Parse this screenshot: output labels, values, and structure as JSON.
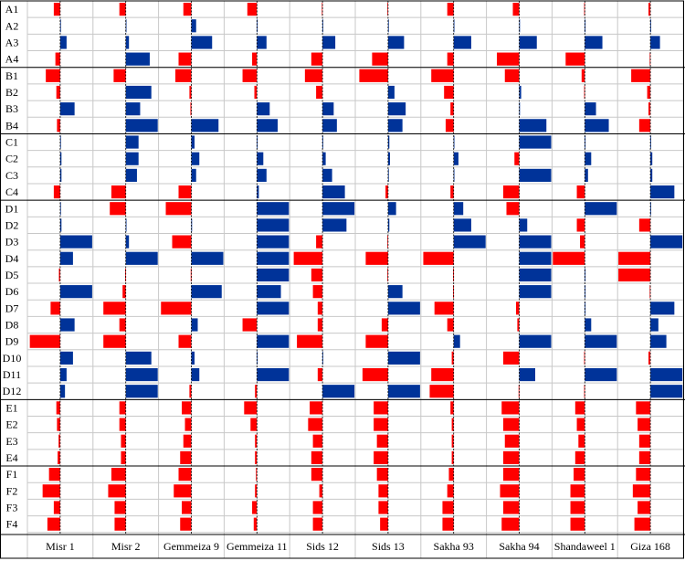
{
  "chart_data": {
    "type": "bar",
    "orientation": "horizontal",
    "layout": "small-multiples",
    "colors": {
      "positive": "#003399",
      "negative": "#ff0000",
      "frame": "#000000",
      "grid": "#c8c8c8"
    },
    "xlim": [
      -1,
      1
    ],
    "grid": true,
    "legend": "none",
    "groups": [
      {
        "name": "A",
        "rows": [
          "A1",
          "A2",
          "A3",
          "A4"
        ]
      },
      {
        "name": "B",
        "rows": [
          "B1",
          "B2",
          "B3",
          "B4"
        ]
      },
      {
        "name": "C",
        "rows": [
          "C1",
          "C2",
          "C3",
          "C4"
        ]
      },
      {
        "name": "D",
        "rows": [
          "D1",
          "D2",
          "D3",
          "D4",
          "D5",
          "D6",
          "D7",
          "D8",
          "D9",
          "D10",
          "D11",
          "D12"
        ]
      },
      {
        "name": "E",
        "rows": [
          "E1",
          "E2",
          "E3",
          "E4"
        ]
      },
      {
        "name": "F",
        "rows": [
          "F1",
          "F2",
          "F3",
          "F4"
        ]
      }
    ],
    "rows": [
      "A1",
      "A2",
      "A3",
      "A4",
      "B1",
      "B2",
      "B3",
      "B4",
      "C1",
      "C2",
      "C3",
      "C4",
      "D1",
      "D2",
      "D3",
      "D4",
      "D5",
      "D6",
      "D7",
      "D8",
      "D9",
      "D10",
      "D11",
      "D12",
      "E1",
      "E2",
      "E3",
      "E4",
      "F1",
      "F2",
      "F3",
      "F4"
    ],
    "series": [
      {
        "name": "Misr 1",
        "values": [
          -0.2,
          0.02,
          0.2,
          -0.15,
          -0.45,
          -0.12,
          0.45,
          -0.1,
          0.02,
          0.04,
          0.04,
          -0.2,
          0.02,
          0.04,
          1.0,
          0.4,
          -0.04,
          1.0,
          -0.3,
          0.45,
          -0.95,
          0.4,
          0.2,
          0.15,
          -0.12,
          -0.1,
          -0.05,
          -0.08,
          -0.35,
          -0.55,
          -0.2,
          -0.4
        ]
      },
      {
        "name": "Misr 2",
        "values": [
          -0.2,
          0.02,
          0.1,
          0.75,
          -0.38,
          0.8,
          0.45,
          1.0,
          0.4,
          0.4,
          0.35,
          -0.45,
          -0.5,
          0.02,
          0.1,
          1.0,
          -0.02,
          -0.1,
          -0.7,
          -0.2,
          -0.7,
          0.8,
          1.0,
          1.0,
          -0.2,
          -0.2,
          -0.15,
          -0.15,
          -0.45,
          -0.55,
          -0.35,
          -0.35
        ]
      },
      {
        "name": "Gemmeiza 9",
        "values": [
          -0.25,
          0.15,
          0.65,
          -0.4,
          -0.5,
          -0.06,
          -0.03,
          0.85,
          0.1,
          0.25,
          0.15,
          -0.4,
          -0.8,
          0.02,
          -0.6,
          1.0,
          -0.02,
          0.95,
          -0.95,
          0.2,
          -0.4,
          0.1,
          0.25,
          -0.06,
          -0.3,
          -0.2,
          -0.25,
          -0.35,
          -0.4,
          -0.55,
          -0.3,
          -0.35
        ]
      },
      {
        "name": "Gemmeiza 11",
        "values": [
          -0.3,
          0.02,
          0.3,
          -0.15,
          -0.45,
          -0.08,
          0.4,
          0.65,
          0.02,
          0.2,
          0.3,
          0.06,
          1.0,
          1.0,
          1.0,
          1.0,
          1.0,
          0.75,
          1.0,
          -0.45,
          1.0,
          0.02,
          1.0,
          -0.06,
          -0.4,
          -0.2,
          -0.06,
          -0.06,
          -0.03,
          -0.06,
          -0.15,
          -0.1
        ]
      },
      {
        "name": "Sids 12",
        "values": [
          -0.02,
          0.02,
          0.4,
          -0.35,
          -0.55,
          -0.2,
          0.35,
          0.45,
          0.02,
          0.1,
          0.3,
          0.7,
          1.0,
          0.75,
          -0.2,
          -0.9,
          -0.35,
          -0.3,
          -0.15,
          -0.15,
          -0.8,
          0.02,
          -0.15,
          1.0,
          -0.4,
          -0.45,
          -0.3,
          -0.35,
          -0.35,
          -0.1,
          -0.3,
          -0.3
        ]
      },
      {
        "name": "Sids 13",
        "values": [
          -0.02,
          0.02,
          0.5,
          -0.5,
          -0.9,
          0.2,
          0.55,
          0.45,
          0.04,
          0.06,
          0.02,
          -0.08,
          0.25,
          0.04,
          -0.02,
          -0.7,
          -0.02,
          0.45,
          1.0,
          -0.2,
          -0.7,
          1.0,
          -0.8,
          1.0,
          -0.45,
          -0.45,
          -0.35,
          -0.45,
          -0.35,
          -0.3,
          -0.3,
          -0.25
        ]
      },
      {
        "name": "Sakha 93",
        "values": [
          -0.2,
          0.02,
          0.55,
          -0.2,
          -0.7,
          -0.3,
          -0.1,
          -0.25,
          0.02,
          0.15,
          0.02,
          -0.1,
          0.3,
          0.55,
          1.0,
          -0.95,
          -0.02,
          -0.02,
          -0.6,
          -0.2,
          0.2,
          -0.06,
          -0.7,
          -0.75,
          -0.1,
          -0.06,
          -0.06,
          -0.06,
          -0.15,
          -0.2,
          -0.35,
          -0.35
        ]
      },
      {
        "name": "Sakha 94",
        "values": [
          -0.2,
          0.02,
          0.55,
          -0.7,
          -0.45,
          0.06,
          0.02,
          0.85,
          1.0,
          -0.15,
          1.0,
          -0.5,
          -0.4,
          0.25,
          1.0,
          1.0,
          1.0,
          1.0,
          -0.1,
          -0.06,
          1.0,
          -0.5,
          0.5,
          -0.02,
          -0.55,
          -0.5,
          -0.45,
          -0.5,
          -0.5,
          -0.6,
          -0.5,
          -0.55
        ]
      },
      {
        "name": "Shandaweel 1",
        "values": [
          -0.02,
          0.02,
          0.55,
          -0.6,
          -0.1,
          -0.02,
          0.35,
          0.75,
          0.02,
          0.2,
          0.1,
          -0.25,
          1.0,
          -0.25,
          -0.15,
          -1.0,
          0.02,
          0.02,
          0.02,
          0.2,
          1.0,
          -0.02,
          1.0,
          -0.02,
          -0.3,
          -0.25,
          -0.2,
          -0.3,
          -0.35,
          -0.45,
          -0.45,
          -0.45
        ]
      },
      {
        "name": "Giza 168",
        "values": [
          -0.06,
          0.02,
          0.3,
          -0.02,
          -0.6,
          -0.1,
          -0.06,
          -0.35,
          0.02,
          0.06,
          0.06,
          0.75,
          0.02,
          -0.35,
          1.0,
          -1.0,
          -1.0,
          -0.02,
          0.75,
          0.25,
          0.5,
          -0.06,
          1.0,
          1.0,
          -0.45,
          -0.4,
          -0.35,
          -0.35,
          -0.45,
          -0.55,
          -0.4,
          -0.5
        ]
      }
    ]
  }
}
